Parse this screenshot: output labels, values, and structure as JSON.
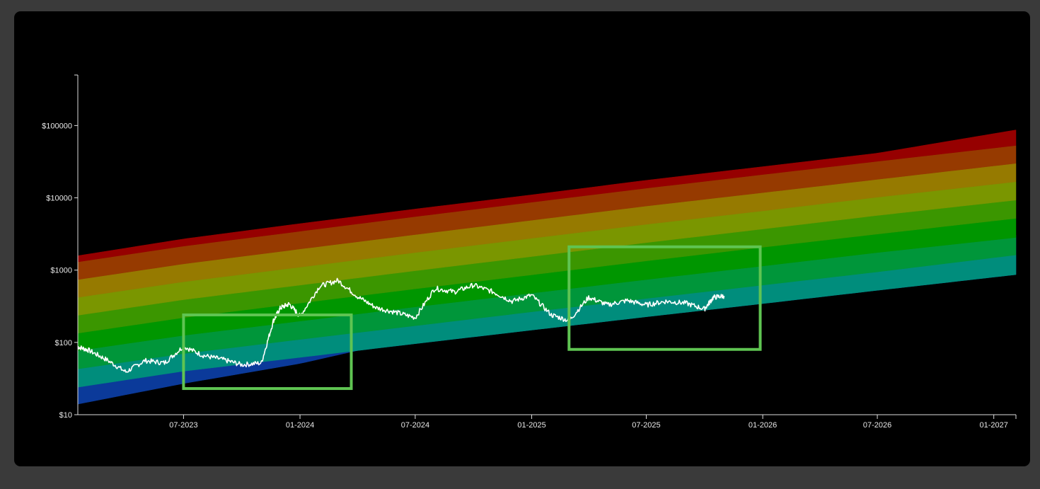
{
  "chart_data": {
    "type": "area",
    "title": "",
    "xlabel": "",
    "ylabel": "",
    "y_scale": "log",
    "ylim": [
      10,
      500000
    ],
    "xlim": [
      "2023-01-15",
      "2027-02-05"
    ],
    "y_ticks": [
      {
        "value": 10,
        "label": "$10"
      },
      {
        "value": 100,
        "label": "$100"
      },
      {
        "value": 1000,
        "label": "$1000"
      },
      {
        "value": 10000,
        "label": "$10000"
      },
      {
        "value": 100000,
        "label": "$100000"
      }
    ],
    "x_ticks": [
      {
        "date": "2023-07-01",
        "label": "07-2023"
      },
      {
        "date": "2024-01-01",
        "label": "01-2024"
      },
      {
        "date": "2024-07-01",
        "label": "07-2024"
      },
      {
        "date": "2025-01-01",
        "label": "01-2025"
      },
      {
        "date": "2025-07-01",
        "label": "07-2025"
      },
      {
        "date": "2026-01-01",
        "label": "01-2026"
      },
      {
        "date": "2026-07-01",
        "label": "07-2026"
      },
      {
        "date": "2027-01-01",
        "label": "01-2027"
      }
    ],
    "grid": false,
    "legend": "none",
    "bands": {
      "colors": [
        "#0b3a9a",
        "#008d7c",
        "#00963a",
        "#009600",
        "#3b9600",
        "#7a9600",
        "#967a00",
        "#963a00",
        "#960000"
      ],
      "x": [
        "2023-01-15",
        "2023-07-01",
        "2024-01-01",
        "2024-07-01",
        "2025-01-01",
        "2025-07-01",
        "2026-01-01",
        "2026-07-01",
        "2027-02-05"
      ],
      "boundaries": [
        [
          14,
          27,
          51,
          117,
          227,
          428,
          810,
          1570,
          3050
        ],
        [
          24,
          40,
          62,
          96,
          148,
          226,
          344,
          525,
          866
        ],
        [
          43,
          70,
          110,
          170,
          265,
          405,
          620,
          945,
          1620
        ],
        [
          77,
          125,
          197,
          310,
          480,
          740,
          1140,
          1750,
          2830
        ],
        [
          134,
          220,
          350,
          550,
          860,
          1340,
          2070,
          3150,
          5200
        ],
        [
          237,
          390,
          620,
          980,
          1540,
          2400,
          3700,
          5700,
          9300
        ],
        [
          420,
          690,
          1100,
          1750,
          2760,
          4300,
          6600,
          10200,
          16700
        ],
        [
          740,
          1220,
          1960,
          3100,
          4900,
          7700,
          11800,
          18000,
          30000
        ],
        [
          1300,
          2150,
          3450,
          5500,
          8700,
          13600,
          21000,
          32000,
          53000
        ],
        [
          1580,
          2700,
          4400,
          7000,
          11000,
          17500,
          27000,
          41500,
          87000
        ]
      ]
    },
    "series": [
      {
        "x": [
          "2023-01-15",
          "2023-02-01",
          "2023-03-01",
          "2023-04-01",
          "2023-05-01",
          "2023-06-01",
          "2023-07-01",
          "2023-08-01",
          "2023-09-01",
          "2023-10-01",
          "2023-11-01",
          "2023-11-20",
          "2023-12-01",
          "2023-12-15",
          "2024-01-01",
          "2024-02-01",
          "2024-03-01",
          "2024-04-01",
          "2024-05-01",
          "2024-06-01",
          "2024-07-01",
          "2024-08-01",
          "2024-09-01",
          "2024-10-01",
          "2024-11-01",
          "2024-12-01",
          "2025-01-01",
          "2025-02-01",
          "2025-03-01",
          "2025-04-01",
          "2025-05-01",
          "2025-06-01",
          "2025-07-01",
          "2025-08-01",
          "2025-09-01",
          "2025-10-01",
          "2025-10-15",
          "2025-11-01"
        ],
        "values": [
          87,
          78,
          58,
          39,
          56,
          52,
          88,
          66,
          58,
          49,
          52,
          200,
          300,
          340,
          230,
          600,
          720,
          430,
          300,
          260,
          220,
          560,
          500,
          620,
          500,
          370,
          450,
          240,
          200,
          420,
          330,
          380,
          330,
          370,
          350,
          290,
          420,
          440
        ]
      }
    ],
    "highlights": [
      {
        "x_start": "2023-07-01",
        "x_end": "2024-03-22",
        "y_min": 23,
        "y_max": 240
      },
      {
        "x_start": "2025-03-01",
        "x_end": "2025-12-28",
        "y_min": 80,
        "y_max": 2100
      }
    ],
    "colors": {
      "line": "#ffffff",
      "axis": "#dddddd",
      "highlight": "#5fc452"
    }
  }
}
